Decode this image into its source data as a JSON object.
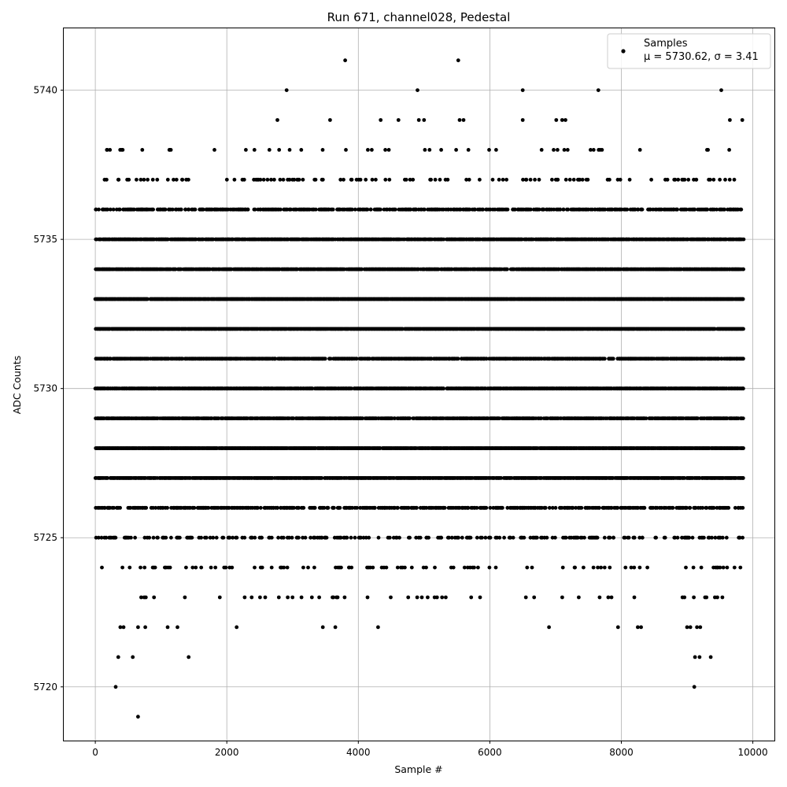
{
  "chart_data": {
    "type": "scatter",
    "title": "Run 671, channel028, Pedestal",
    "xlabel": "Sample #",
    "ylabel": "ADC Counts",
    "xlim": [
      -480,
      10340
    ],
    "ylim": [
      5718.2,
      5742.1
    ],
    "xticks": [
      0,
      2000,
      4000,
      6000,
      8000,
      10000
    ],
    "yticks": [
      5720,
      5725,
      5730,
      5735,
      5740
    ],
    "grid": true,
    "marker_color": "#000000",
    "legend": {
      "placement": "top-right",
      "entries": [
        {
          "label": "Samples",
          "stats": "μ = 5730.62, σ = 3.41"
        }
      ]
    },
    "sample_count": 9860,
    "bands": [
      {
        "y": 5723,
        "density": 0.045
      },
      {
        "y": 5724,
        "density": 0.09
      },
      {
        "y": 5725,
        "density": 0.25
      },
      {
        "y": 5726,
        "density": 0.45
      },
      {
        "y": 5727,
        "density": 0.8
      },
      {
        "y": 5728,
        "density": 0.95
      },
      {
        "y": 5729,
        "density": 0.75
      },
      {
        "y": 5730,
        "density": 0.85
      },
      {
        "y": 5731,
        "density": 0.75
      },
      {
        "y": 5732,
        "density": 0.95
      },
      {
        "y": 5733,
        "density": 0.95
      },
      {
        "y": 5734,
        "density": 0.85
      },
      {
        "y": 5735,
        "density": 0.8
      },
      {
        "y": 5736,
        "density": 0.5
      },
      {
        "y": 5737,
        "density": 0.12
      },
      {
        "y": 5738,
        "density": 0.03
      }
    ],
    "sparse_points": [
      [
        310,
        5720
      ],
      [
        650,
        5719
      ],
      [
        9110,
        5720
      ],
      [
        350,
        5721
      ],
      [
        570,
        5721
      ],
      [
        1420,
        5721
      ],
      [
        9120,
        5721
      ],
      [
        9190,
        5721
      ],
      [
        9360,
        5721
      ],
      [
        380,
        5722
      ],
      [
        430,
        5722
      ],
      [
        650,
        5722
      ],
      [
        760,
        5722
      ],
      [
        1100,
        5722
      ],
      [
        1250,
        5722
      ],
      [
        2150,
        5722
      ],
      [
        3460,
        5722
      ],
      [
        3650,
        5722
      ],
      [
        4300,
        5722
      ],
      [
        6900,
        5722
      ],
      [
        7950,
        5722
      ],
      [
        8250,
        5722
      ],
      [
        8300,
        5722
      ],
      [
        9000,
        5722
      ],
      [
        9050,
        5722
      ],
      [
        9150,
        5722
      ],
      [
        9200,
        5722
      ],
      [
        2910,
        5740
      ],
      [
        4900,
        5740
      ],
      [
        6500,
        5740
      ],
      [
        7650,
        5740
      ],
      [
        9520,
        5740
      ],
      [
        3800,
        5741
      ],
      [
        5520,
        5741
      ],
      [
        2770,
        5739
      ],
      [
        3570,
        5739
      ],
      [
        4340,
        5739
      ],
      [
        4610,
        5739
      ],
      [
        4920,
        5739
      ],
      [
        5000,
        5739
      ],
      [
        5540,
        5739
      ],
      [
        5600,
        5739
      ],
      [
        6500,
        5739
      ],
      [
        7010,
        5739
      ],
      [
        7100,
        5739
      ],
      [
        7150,
        5739
      ],
      [
        9650,
        5739
      ],
      [
        9840,
        5739
      ]
    ]
  }
}
